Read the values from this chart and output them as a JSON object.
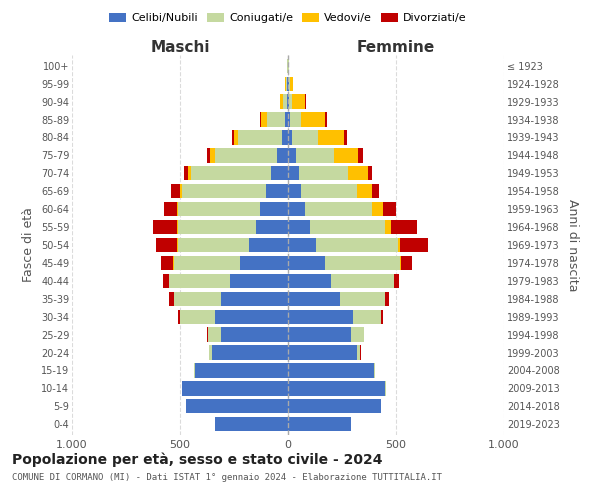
{
  "age_groups": [
    "0-4",
    "5-9",
    "10-14",
    "15-19",
    "20-24",
    "25-29",
    "30-34",
    "35-39",
    "40-44",
    "45-49",
    "50-54",
    "55-59",
    "60-64",
    "65-69",
    "70-74",
    "75-79",
    "80-84",
    "85-89",
    "90-94",
    "95-99",
    "100+"
  ],
  "birth_years": [
    "2019-2023",
    "2014-2018",
    "2009-2013",
    "2004-2008",
    "1999-2003",
    "1994-1998",
    "1989-1993",
    "1984-1988",
    "1979-1983",
    "1974-1978",
    "1969-1973",
    "1964-1968",
    "1959-1963",
    "1954-1958",
    "1949-1953",
    "1944-1948",
    "1939-1943",
    "1934-1938",
    "1929-1933",
    "1924-1928",
    "≤ 1923"
  ],
  "maschi": {
    "celibi": [
      340,
      470,
      490,
      430,
      350,
      310,
      340,
      310,
      270,
      220,
      180,
      150,
      130,
      100,
      80,
      50,
      30,
      15,
      5,
      3,
      2
    ],
    "coniugati": [
      0,
      1,
      2,
      5,
      15,
      60,
      160,
      220,
      280,
      310,
      330,
      360,
      380,
      390,
      370,
      290,
      200,
      80,
      20,
      8,
      2
    ],
    "vedovi": [
      0,
      0,
      0,
      0,
      0,
      0,
      0,
      0,
      1,
      2,
      3,
      5,
      5,
      10,
      15,
      20,
      20,
      30,
      10,
      2,
      0
    ],
    "divorziati": [
      0,
      0,
      0,
      0,
      2,
      5,
      10,
      20,
      30,
      55,
      100,
      110,
      60,
      40,
      15,
      15,
      10,
      5,
      0,
      0,
      0
    ]
  },
  "femmine": {
    "nubili": [
      290,
      430,
      450,
      400,
      320,
      290,
      300,
      240,
      200,
      170,
      130,
      100,
      80,
      60,
      50,
      35,
      20,
      10,
      5,
      3,
      2
    ],
    "coniugate": [
      0,
      1,
      2,
      5,
      15,
      60,
      130,
      210,
      290,
      350,
      380,
      350,
      310,
      260,
      230,
      180,
      120,
      50,
      15,
      5,
      2
    ],
    "vedove": [
      0,
      0,
      0,
      0,
      0,
      0,
      0,
      1,
      2,
      5,
      10,
      25,
      50,
      70,
      90,
      110,
      120,
      110,
      60,
      15,
      0
    ],
    "divorziate": [
      0,
      0,
      0,
      0,
      1,
      3,
      8,
      15,
      20,
      50,
      130,
      120,
      60,
      30,
      20,
      20,
      15,
      10,
      5,
      0,
      0
    ]
  },
  "colors": {
    "celibi": "#4472c4",
    "coniugati": "#c5d9a0",
    "vedovi": "#ffc000",
    "divorziati": "#c00000"
  },
  "xlim": 1000,
  "title": "Popolazione per età, sesso e stato civile - 2024",
  "subtitle": "COMUNE DI CORMANO (MI) - Dati ISTAT 1° gennaio 2024 - Elaborazione TUTTITALIA.IT",
  "ylabel_left": "Fasce di età",
  "ylabel_right": "Anni di nascita",
  "xlabel_left": "Maschi",
  "xlabel_right": "Femmine",
  "background_color": "#ffffff"
}
